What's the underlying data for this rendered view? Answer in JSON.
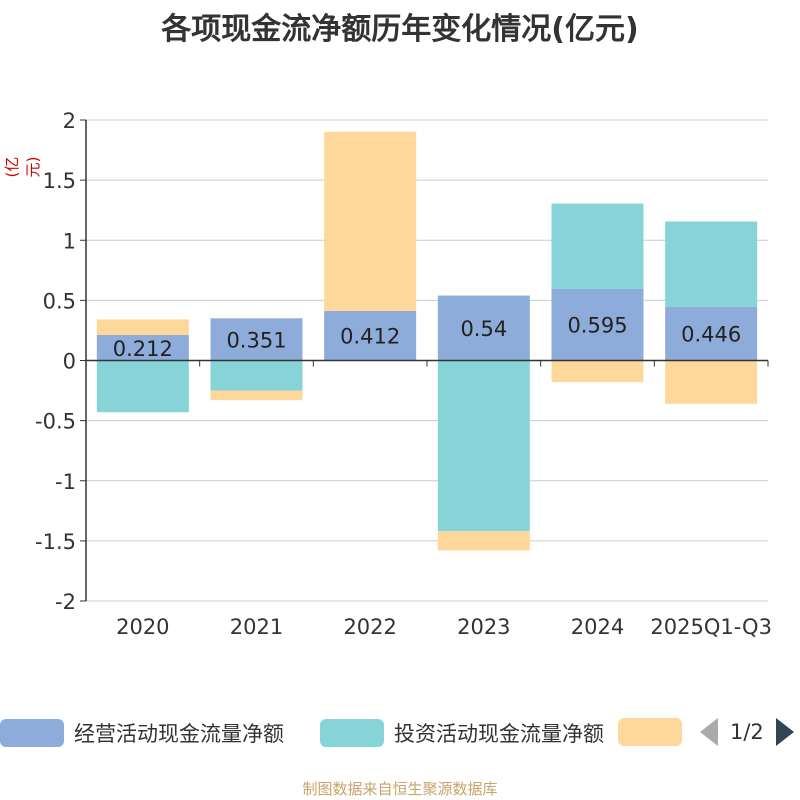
{
  "title": "各项现金流净额历年变化情况(亿元)",
  "unit_label": "(亿元)",
  "source": "制图数据来自恒生聚源数据库",
  "legend": {
    "pager": "1/2",
    "items": [
      {
        "label": "经营活动现金流量净额",
        "color": "#8eacd9"
      },
      {
        "label": "投资活动现金流量净额",
        "color": "#86d4d8"
      },
      {
        "label": "",
        "color": "#fed89a"
      }
    ]
  },
  "chart_data": {
    "type": "bar",
    "stacked": true,
    "categories": [
      "2020",
      "2021",
      "2022",
      "2023",
      "2024",
      "2025Q1-Q3"
    ],
    "ylim": [
      -2,
      2
    ],
    "yticks": [
      2,
      1.5,
      1,
      0.5,
      0,
      -0.5,
      -1,
      -1.5,
      -2
    ],
    "ytick_labels": [
      "2",
      "1.5",
      "1",
      "0.5",
      "0",
      "-0.5",
      "-1",
      "-1.5",
      "-2"
    ],
    "grid": true,
    "series": [
      {
        "name": "经营活动现金流量净额",
        "color": "#8eacd9",
        "values": [
          0.212,
          0.351,
          0.412,
          0.54,
          0.595,
          0.446
        ],
        "labels": [
          "0.212",
          "0.351",
          "0.412",
          "0.54",
          "0.595",
          "0.446"
        ]
      },
      {
        "name": "投资活动现金流量净额",
        "color": "#86d4d8",
        "values": [
          -0.43,
          -0.25,
          0,
          -1.42,
          0.71,
          0.71
        ]
      },
      {
        "name": "",
        "color": "#fed89a",
        "values": [
          0.13,
          -0.08,
          1.49,
          -0.16,
          -0.18,
          -0.36
        ]
      }
    ]
  }
}
